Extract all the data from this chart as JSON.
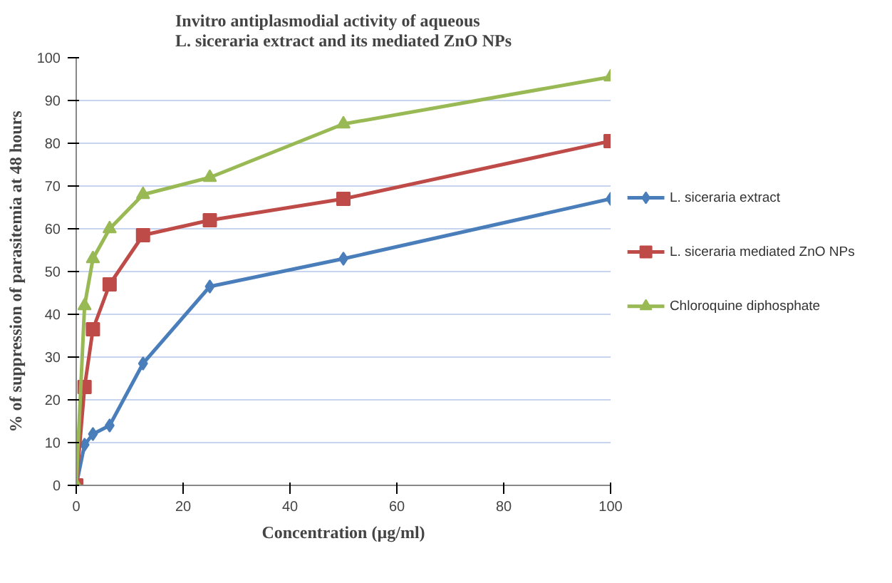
{
  "chart_data": {
    "type": "line",
    "title": "Invitro antiplasmodial activity of aqueous L. siceraria extract and its mediated ZnO NPs",
    "xlabel": "Concentration (µg/ml)",
    "ylabel": "% of suppression of parasitemia at 48 hours",
    "x": [
      0,
      1.56,
      3.125,
      6.25,
      12.5,
      25,
      50,
      100
    ],
    "series": [
      {
        "name": "L. siceraria extract",
        "color": "#4a7ebb",
        "marker": "diamond",
        "values": [
          0,
          9.5,
          12,
          14,
          28.5,
          46.5,
          53,
          67
        ]
      },
      {
        "name": "L. siceraria mediated ZnO NPs",
        "color": "#be4b48",
        "marker": "square",
        "values": [
          0,
          23,
          36.5,
          47,
          58.5,
          62,
          67,
          80.5
        ]
      },
      {
        "name": "Chloroquine diphosphate",
        "color": "#98b954",
        "marker": "triangle",
        "values": [
          0,
          42,
          53,
          60,
          68,
          72,
          84.5,
          95.5
        ]
      }
    ],
    "xlim": [
      0,
      100
    ],
    "xticks": [
      0,
      20,
      40,
      60,
      80,
      100
    ],
    "ylim": [
      0,
      100
    ],
    "yticks": [
      0,
      10,
      20,
      30,
      40,
      50,
      60,
      70,
      80,
      90,
      100
    ],
    "grid": "y",
    "legend": "right",
    "line_style": "solid"
  }
}
